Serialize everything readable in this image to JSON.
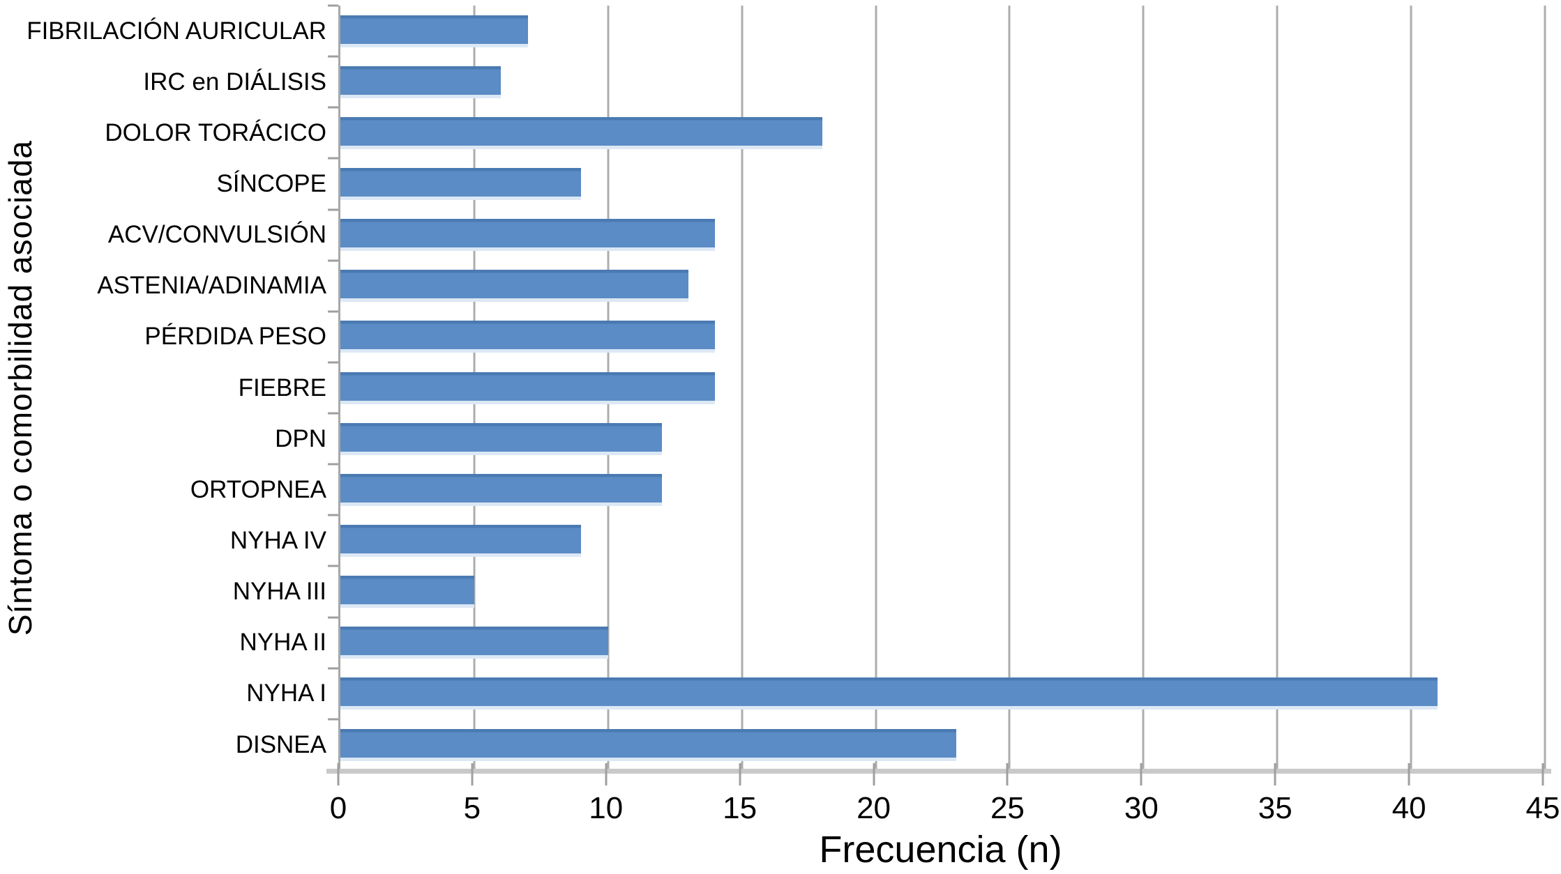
{
  "chart_data": {
    "type": "bar",
    "orientation": "horizontal",
    "xlabel": "Frecuencia (n)",
    "ylabel": "Síntoma o comorbilidad asociada",
    "xlim": [
      0,
      45
    ],
    "xticks": [
      0,
      5,
      10,
      15,
      20,
      25,
      30,
      35,
      40,
      45
    ],
    "grid": "vertical-gridlines-on",
    "legend": "none",
    "categories": [
      "FIBRILACIÓN AURICULAR",
      "IRC en DIÁLISIS",
      "DOLOR TORÁCICO",
      "SÍNCOPE",
      "ACV/CONVULSIÓN",
      "ASTENIA/ADINAMIA",
      "PÉRDIDA PESO",
      "FIEBRE",
      "DPN",
      "ORTOPNEA",
      "NYHA IV",
      "NYHA III",
      "NYHA II",
      "NYHA I",
      "DISNEA"
    ],
    "values": [
      7,
      6,
      18,
      9,
      14,
      13,
      14,
      14,
      12,
      12,
      9,
      5,
      10,
      41,
      23
    ]
  },
  "colors": {
    "bar": "#5b8cc5",
    "bar_top_edge": "#4a7ab2",
    "bar_bottom_edge": "#dce8f5",
    "gridline": "#adadad",
    "axis_line": "#a8a8a8",
    "x_axis_band": "#c9c9c9",
    "tick": "#9f9f9f",
    "text": "#000000",
    "background": "#ffffff"
  }
}
